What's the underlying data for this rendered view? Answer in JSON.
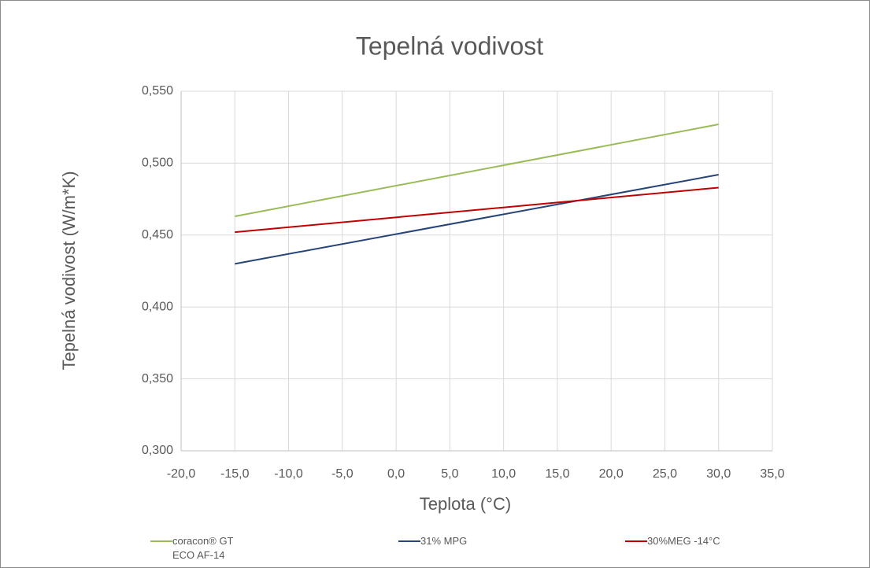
{
  "chart_data": {
    "type": "line",
    "title": "Tepelná vodivost",
    "x_label": "Teplota (°C)",
    "y_label": "Tepelná vodivost (W/m*K)",
    "x": [
      -15,
      30
    ],
    "series": [
      {
        "name": "coracon® GT ECO AF-14",
        "color": "#9bbb59",
        "values": [
          0.463,
          0.527
        ]
      },
      {
        "name": "31% MPG",
        "color": "#264478",
        "values": [
          0.43,
          0.492
        ]
      },
      {
        "name": "30%MEG -14°C",
        "color": "#c00000",
        "values": [
          0.452,
          0.483
        ]
      }
    ],
    "xlim": [
      -20,
      35
    ],
    "xticks": [
      {
        "value": -20,
        "label": "-20,0"
      },
      {
        "value": -15,
        "label": "-15,0"
      },
      {
        "value": -10,
        "label": "-10,0"
      },
      {
        "value": -5,
        "label": "-5,0"
      },
      {
        "value": 0,
        "label": "0,0"
      },
      {
        "value": 5,
        "label": "5,0"
      },
      {
        "value": 10,
        "label": "10,0"
      },
      {
        "value": 15,
        "label": "15,0"
      },
      {
        "value": 20,
        "label": "20,0"
      },
      {
        "value": 25,
        "label": "25,0"
      },
      {
        "value": 30,
        "label": "30,0"
      },
      {
        "value": 35,
        "label": "35,0"
      }
    ],
    "ylim": [
      0.3,
      0.55
    ],
    "yticks": [
      {
        "value": 0.3,
        "label": "0,300"
      },
      {
        "value": 0.35,
        "label": "0,350"
      },
      {
        "value": 0.4,
        "label": "0,400"
      },
      {
        "value": 0.45,
        "label": "0,450"
      },
      {
        "value": 0.5,
        "label": "0,500"
      },
      {
        "value": 0.55,
        "label": "0,550"
      }
    ],
    "grid": true,
    "legend": "bottom"
  }
}
